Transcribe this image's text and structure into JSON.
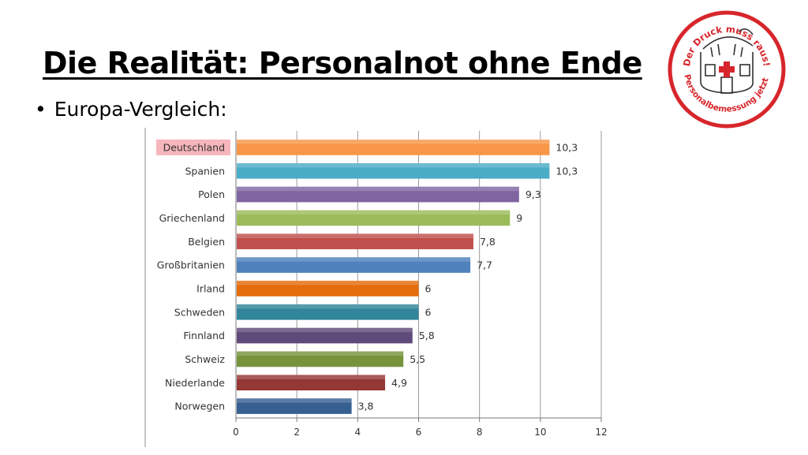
{
  "slide": {
    "title": "Die Realität: Personalnot ohne Ende",
    "bullet": "Europa-Vergleich:"
  },
  "logo": {
    "text_top": "Der Druck muss raus!",
    "text_bottom": "Personalbemessung jetzt!",
    "icon": "hospital-pot-icon",
    "ring_color": "#d7262b"
  },
  "chart_data": {
    "type": "bar",
    "orientation": "horizontal",
    "title": "",
    "xlabel": "",
    "ylabel": "",
    "xlim": [
      0,
      12
    ],
    "x_ticks": [
      "0",
      "2",
      "4",
      "6",
      "8",
      "10",
      "12"
    ],
    "grid": true,
    "highlighted_category": "Deutschland",
    "highlight_color": "#f6b6bb",
    "categories": [
      "Deutschland",
      "Spanien",
      "Polen",
      "Griechenland",
      "Belgien",
      "Großbritanien",
      "Irland",
      "Schweden",
      "Finnland",
      "Schweiz",
      "Niederlande",
      "Norwegen"
    ],
    "values": [
      10.3,
      10.3,
      9.3,
      9,
      7.8,
      7.7,
      6,
      6,
      5.8,
      5.5,
      4.9,
      3.8
    ],
    "value_labels": [
      "10,3",
      "10,3",
      "9,3",
      "9",
      "7,8",
      "7,7",
      "6",
      "6",
      "5,8",
      "5,5",
      "4,9",
      "3,8"
    ],
    "colors": [
      "#f79646",
      "#4bacc6",
      "#8064a2",
      "#9bbb59",
      "#c0504d",
      "#4f81bd",
      "#e46c0a",
      "#31869b",
      "#604a7b",
      "#77933c",
      "#953735",
      "#376092"
    ]
  }
}
